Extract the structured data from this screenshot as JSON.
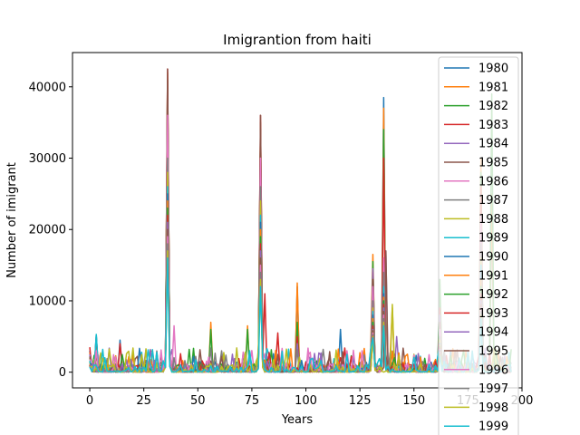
{
  "chart_data": {
    "type": "line",
    "title": "Imigrantion from haiti",
    "xlabel": "Years",
    "ylabel": "Number of imigrant",
    "xlim": [
      -8,
      200
    ],
    "ylim": [
      -2200,
      44800
    ],
    "xticks": [
      0,
      25,
      50,
      75,
      100,
      125,
      150,
      175,
      200
    ],
    "yticks": [
      0,
      10000,
      20000,
      30000,
      40000
    ],
    "grid": false,
    "legend_position": "top-right",
    "series": [
      {
        "name": "1980",
        "color": "#1f77b4",
        "peaks": [
          [
            0,
            3000
          ],
          [
            3,
            5200
          ],
          [
            14,
            4500
          ],
          [
            36,
            40000
          ],
          [
            79,
            34000
          ],
          [
            96,
            12000
          ],
          [
            116,
            6000
          ],
          [
            131,
            15000
          ],
          [
            136,
            38500
          ],
          [
            162,
            11000
          ],
          [
            181,
            24000
          ],
          [
            186,
            23000
          ]
        ]
      },
      {
        "name": "1981",
        "color": "#ff7f0e",
        "peaks": [
          [
            0,
            2800
          ],
          [
            3,
            4000
          ],
          [
            36,
            42000
          ],
          [
            56,
            7000
          ],
          [
            73,
            6500
          ],
          [
            79,
            35000
          ],
          [
            96,
            12500
          ],
          [
            131,
            16500
          ],
          [
            136,
            37000
          ],
          [
            140,
            9000
          ],
          [
            162,
            10000
          ],
          [
            181,
            30000
          ],
          [
            186,
            25000
          ]
        ]
      },
      {
        "name": "1982",
        "color": "#2ca02c",
        "peaks": [
          [
            0,
            2000
          ],
          [
            36,
            41000
          ],
          [
            56,
            6000
          ],
          [
            73,
            6000
          ],
          [
            79,
            34000
          ],
          [
            96,
            7000
          ],
          [
            131,
            15500
          ],
          [
            136,
            34000
          ],
          [
            162,
            13000
          ],
          [
            181,
            28000
          ],
          [
            186,
            39000
          ]
        ]
      },
      {
        "name": "1983",
        "color": "#d62728",
        "peaks": [
          [
            0,
            3500
          ],
          [
            3,
            5000
          ],
          [
            14,
            4000
          ],
          [
            36,
            42500
          ],
          [
            79,
            36000
          ],
          [
            81,
            11000
          ],
          [
            87,
            5500
          ],
          [
            96,
            5000
          ],
          [
            131,
            14000
          ],
          [
            136,
            30000
          ],
          [
            162,
            9000
          ],
          [
            181,
            26000
          ]
        ]
      },
      {
        "name": "1984",
        "color": "#9467bd",
        "peaks": [
          [
            0,
            2500
          ],
          [
            36,
            38000
          ],
          [
            79,
            32000
          ],
          [
            96,
            4000
          ],
          [
            131,
            14500
          ],
          [
            137,
            17000
          ],
          [
            142,
            5000
          ],
          [
            162,
            8000
          ],
          [
            181,
            20000
          ]
        ]
      },
      {
        "name": "1985",
        "color": "#8c564b",
        "peaks": [
          [
            0,
            2200
          ],
          [
            36,
            42500
          ],
          [
            79,
            36000
          ],
          [
            131,
            13000
          ],
          [
            137,
            17000
          ],
          [
            162,
            7000
          ],
          [
            181,
            22000
          ]
        ]
      },
      {
        "name": "1986",
        "color": "#e377c2",
        "peaks": [
          [
            0,
            1800
          ],
          [
            36,
            36000
          ],
          [
            39,
            6500
          ],
          [
            79,
            30000
          ],
          [
            131,
            12000
          ],
          [
            136,
            16000
          ],
          [
            162,
            6000
          ],
          [
            181,
            22000
          ]
        ]
      },
      {
        "name": "1987",
        "color": "#7f7f7f",
        "peaks": [
          [
            0,
            1500
          ],
          [
            36,
            30000
          ],
          [
            79,
            26000
          ],
          [
            131,
            10000
          ],
          [
            136,
            14000
          ],
          [
            162,
            5000
          ],
          [
            181,
            18000
          ]
        ]
      },
      {
        "name": "1988",
        "color": "#bcbd22",
        "peaks": [
          [
            0,
            1400
          ],
          [
            36,
            28000
          ],
          [
            79,
            24000
          ],
          [
            131,
            9000
          ],
          [
            140,
            9500
          ],
          [
            162,
            4500
          ],
          [
            181,
            16000
          ]
        ]
      },
      {
        "name": "1989",
        "color": "#17becf",
        "peaks": [
          [
            0,
            1600
          ],
          [
            3,
            5300
          ],
          [
            24,
            2800
          ],
          [
            36,
            26000
          ],
          [
            79,
            22000
          ],
          [
            131,
            8500
          ],
          [
            136,
            12000
          ],
          [
            162,
            4000
          ],
          [
            181,
            15000
          ]
        ]
      },
      {
        "name": "1990",
        "color": "#1f77b4",
        "peaks": [
          [
            0,
            1200
          ],
          [
            36,
            25000
          ],
          [
            79,
            21000
          ],
          [
            131,
            8000
          ],
          [
            136,
            11000
          ],
          [
            162,
            4000
          ],
          [
            181,
            14000
          ]
        ]
      },
      {
        "name": "1991",
        "color": "#ff7f0e",
        "peaks": [
          [
            0,
            1100
          ],
          [
            36,
            24000
          ],
          [
            79,
            20000
          ],
          [
            131,
            7500
          ],
          [
            136,
            10500
          ],
          [
            162,
            3800
          ],
          [
            181,
            13000
          ]
        ]
      },
      {
        "name": "1992",
        "color": "#2ca02c",
        "peaks": [
          [
            0,
            1000
          ],
          [
            36,
            23000
          ],
          [
            79,
            19000
          ],
          [
            131,
            7000
          ],
          [
            136,
            10000
          ],
          [
            162,
            3600
          ],
          [
            181,
            12000
          ]
        ]
      },
      {
        "name": "1993",
        "color": "#d62728",
        "peaks": [
          [
            0,
            1000
          ],
          [
            36,
            22000
          ],
          [
            79,
            18000
          ],
          [
            131,
            6500
          ],
          [
            136,
            9500
          ],
          [
            162,
            3400
          ],
          [
            181,
            11000
          ]
        ]
      },
      {
        "name": "1994",
        "color": "#9467bd",
        "peaks": [
          [
            0,
            900
          ],
          [
            36,
            21000
          ],
          [
            79,
            17000
          ],
          [
            131,
            6000
          ],
          [
            136,
            9000
          ],
          [
            162,
            3200
          ],
          [
            181,
            10000
          ]
        ]
      },
      {
        "name": "1995",
        "color": "#8c564b",
        "peaks": [
          [
            0,
            900
          ],
          [
            36,
            20000
          ],
          [
            79,
            16000
          ],
          [
            131,
            5800
          ],
          [
            136,
            8500
          ],
          [
            162,
            3000
          ],
          [
            181,
            9500
          ]
        ]
      },
      {
        "name": "1996",
        "color": "#e377c2",
        "peaks": [
          [
            0,
            800
          ],
          [
            36,
            19000
          ],
          [
            79,
            15000
          ],
          [
            131,
            5500
          ],
          [
            136,
            8000
          ],
          [
            162,
            2800
          ],
          [
            181,
            9000
          ]
        ]
      },
      {
        "name": "1997",
        "color": "#7f7f7f",
        "peaks": [
          [
            0,
            800
          ],
          [
            36,
            18000
          ],
          [
            79,
            14000
          ],
          [
            131,
            5200
          ],
          [
            136,
            7500
          ],
          [
            162,
            2600
          ],
          [
            181,
            8500
          ]
        ]
      },
      {
        "name": "1998",
        "color": "#bcbd22",
        "peaks": [
          [
            0,
            700
          ],
          [
            36,
            17000
          ],
          [
            79,
            13000
          ],
          [
            131,
            5000
          ],
          [
            136,
            7000
          ],
          [
            162,
            2400
          ],
          [
            181,
            8000
          ]
        ]
      },
      {
        "name": "1999",
        "color": "#17becf",
        "peaks": [
          [
            0,
            700
          ],
          [
            36,
            16000
          ],
          [
            79,
            12000
          ],
          [
            131,
            4800
          ],
          [
            136,
            6500
          ],
          [
            162,
            2200
          ],
          [
            181,
            7500
          ]
        ]
      }
    ]
  }
}
